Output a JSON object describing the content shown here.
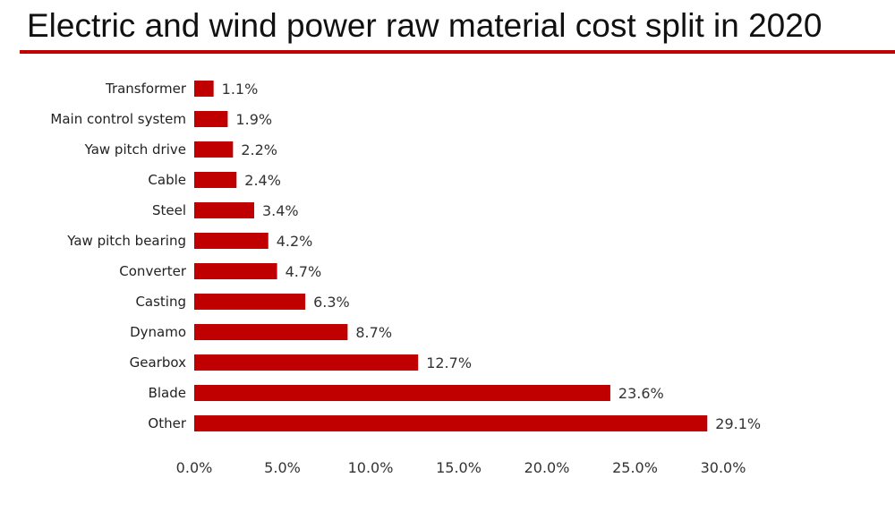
{
  "header": {
    "title": "Electric and wind power raw material cost split in 2020"
  },
  "colors": {
    "accent": "#c00000",
    "bar": "#c00000"
  },
  "chart_data": {
    "type": "bar",
    "orientation": "horizontal",
    "title": "Electric and wind power raw material cost split in 2020",
    "categories": [
      "Transformer",
      "Main control system",
      "Yaw pitch drive",
      "Cable",
      "Steel",
      "Yaw pitch bearing",
      "Converter",
      "Casting",
      "Dynamo",
      "Gearbox",
      "Blade",
      "Other"
    ],
    "values": [
      1.1,
      1.9,
      2.2,
      2.4,
      3.4,
      4.2,
      4.7,
      6.3,
      8.7,
      12.7,
      23.6,
      29.1
    ],
    "value_labels": [
      "1.1%",
      "1.9%",
      "2.2%",
      "2.4%",
      "3.4%",
      "4.2%",
      "4.7%",
      "6.3%",
      "8.7%",
      "12.7%",
      "23.6%",
      "29.1%"
    ],
    "xlim": [
      0,
      30
    ],
    "x_ticks": [
      0,
      5,
      10,
      15,
      20,
      25,
      30
    ],
    "x_tick_labels": [
      "0.0%",
      "5.0%",
      "10.0%",
      "15.0%",
      "20.0%",
      "25.0%",
      "30.0%"
    ],
    "grid": false,
    "legend": "none"
  }
}
